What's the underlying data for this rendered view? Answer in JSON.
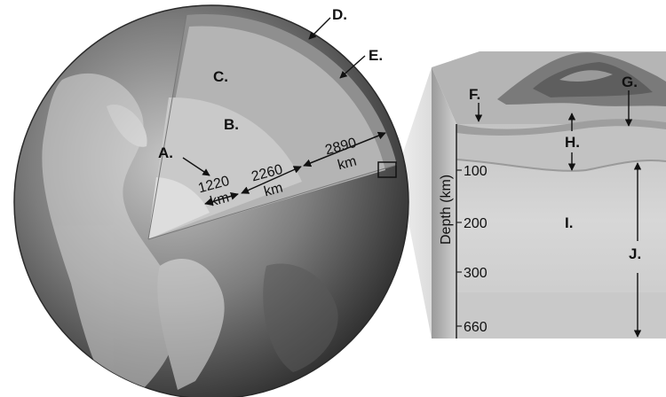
{
  "labels": {
    "a": "A.",
    "b": "B.",
    "c": "C.",
    "d": "D.",
    "e": "E.",
    "f": "F.",
    "g": "G.",
    "h": "H.",
    "i": "I.",
    "j": "J."
  },
  "dimensions": {
    "inner_core": {
      "value": "1220",
      "unit": "km"
    },
    "outer_core": {
      "value": "2260",
      "unit": "km"
    },
    "mantle": {
      "value": "2890",
      "unit": "km"
    }
  },
  "depth_axis": {
    "title": "Depth (km)",
    "ticks": [
      "100",
      "200",
      "300",
      "660"
    ]
  },
  "colors": {
    "globe_dark": "#3a3a3a",
    "globe_light": "#bdbdbd",
    "crust": "#9a9a9a",
    "mantle": "#b9b9b9",
    "outer_core": "#cfcfcf",
    "inner_core": "#e2e2e2",
    "block_front": "#d6d6d6",
    "block_side": "#cfcfcf"
  }
}
